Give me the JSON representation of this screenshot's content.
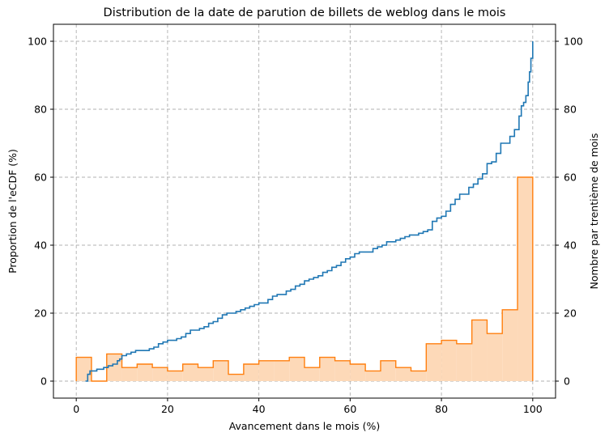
{
  "chart_data": {
    "type": "line",
    "title": "Distribution de la date de parution de billets de weblog dans le mois",
    "xlabel": "Avancement dans le mois (%)",
    "ylabel": "Proportion de l'eCDF (%)",
    "ylabel_right": "Nombre par trentième de mois",
    "xlim": [
      -5,
      105
    ],
    "ylim": [
      -5,
      105
    ],
    "ylim_right": [
      -5,
      105
    ],
    "xticks": [
      0,
      20,
      40,
      60,
      80,
      100
    ],
    "yticks": [
      0,
      20,
      40,
      60,
      80,
      100
    ],
    "yticks_right": [
      0,
      20,
      40,
      60,
      80,
      100
    ],
    "grid": true,
    "series": [
      {
        "kind": "ecdf-step",
        "axis": "left",
        "color": "#1f77b4",
        "x": [
          2,
          2.5,
          3,
          4,
          4.5,
          5,
          6,
          6.5,
          7,
          8,
          9,
          9.5,
          10,
          11,
          12,
          13,
          14,
          16,
          17,
          18,
          19,
          20,
          22,
          23,
          24,
          25,
          27,
          28,
          29,
          30,
          31,
          32,
          33,
          35,
          36,
          37,
          38,
          39,
          40,
          42,
          43,
          44,
          46,
          47,
          48,
          49,
          50,
          51,
          52,
          53,
          54,
          55,
          56,
          57,
          58,
          59,
          60,
          61,
          62,
          63,
          65,
          66,
          67,
          68,
          70,
          71,
          72,
          73,
          74,
          75,
          76,
          77,
          78,
          79,
          80,
          81,
          82,
          83,
          84,
          85,
          86,
          87,
          88,
          89,
          90,
          91,
          92,
          93,
          94,
          95,
          96,
          97,
          97.5,
          98,
          98.5,
          99,
          99.3,
          99.6,
          100
        ],
        "y": [
          0,
          2,
          3,
          3,
          3.5,
          3.5,
          4,
          4,
          4.5,
          5,
          6,
          6.5,
          7.5,
          8,
          8.5,
          9,
          9,
          9.5,
          10,
          11,
          11.5,
          12,
          12.5,
          13,
          14,
          15,
          15.5,
          16,
          17,
          17.5,
          18.5,
          19.5,
          20,
          20.5,
          21,
          21.5,
          22,
          22.5,
          23,
          24,
          25,
          25.5,
          26.5,
          27,
          28,
          28.5,
          29.5,
          30,
          30.5,
          31,
          32,
          32.5,
          33.5,
          34,
          35,
          36,
          36.5,
          37.5,
          38,
          38,
          39,
          39.5,
          40,
          41,
          41.5,
          42,
          42.5,
          43,
          43,
          43.5,
          44,
          44.5,
          47,
          48,
          48.5,
          50,
          52,
          53.5,
          55,
          55,
          57,
          58,
          59.5,
          61,
          64,
          64.5,
          67,
          70,
          70,
          72,
          74,
          78,
          81,
          82,
          84,
          88,
          91,
          95,
          100
        ]
      },
      {
        "kind": "histogram-step",
        "axis": "right",
        "color": "#ff7f0e",
        "fill": "#fdd9b8",
        "bin_edges": [
          0,
          3.33,
          6.67,
          10,
          13.33,
          16.67,
          20,
          23.33,
          26.67,
          30,
          33.33,
          36.67,
          40,
          43.33,
          46.67,
          50,
          53.33,
          56.67,
          60,
          63.33,
          66.67,
          70,
          73.33,
          76.67,
          80,
          83.33,
          86.67,
          90,
          93.33,
          96.67,
          100
        ],
        "values": [
          7,
          0,
          8,
          4,
          5,
          4,
          3,
          5,
          4,
          6,
          2,
          5,
          6,
          6,
          7,
          4,
          7,
          6,
          5,
          3,
          6,
          4,
          3,
          11,
          12,
          11,
          18,
          14,
          21,
          60
        ]
      }
    ]
  }
}
